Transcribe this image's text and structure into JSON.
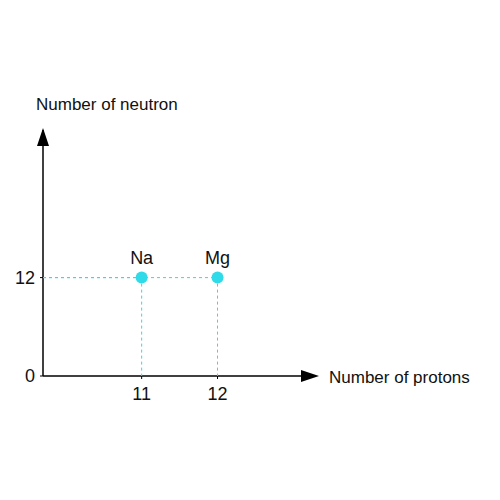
{
  "chart_data": {
    "type": "scatter",
    "x_label": "Number of protons",
    "y_label": "Number of neutron",
    "x": [
      11,
      12
    ],
    "values": [
      12,
      12
    ],
    "labels": [
      "Na",
      "Mg"
    ],
    "color": "#2fdbe8",
    "xlim": [
      9.7,
      13.1
    ],
    "ylim": [
      0,
      30
    ],
    "xticks": [
      11,
      12
    ],
    "yticks": [
      0,
      12
    ],
    "grid": false
  }
}
